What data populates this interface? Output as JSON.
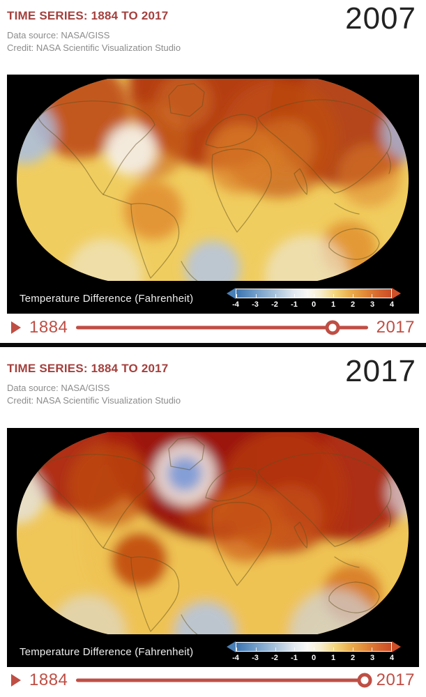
{
  "colors": {
    "accent_red": "#a4403d",
    "slider_red": "#bf4e44",
    "year": "#222222",
    "muted_text": "#8c8c8c",
    "panel_bg": "#000000",
    "page_bg": "#ffffff"
  },
  "legend": {
    "label": "Temperature Difference (Fahrenheit)",
    "ticks": [
      "-4",
      "-3",
      "-2",
      "-1",
      "0",
      "1",
      "2",
      "3",
      "4"
    ],
    "min_value": -4,
    "max_value": 4,
    "min_color": "#3c74b0",
    "max_color": "#cc4d26",
    "left_arrow_color": "#4a7fb5",
    "right_arrow_color": "#cf4f28"
  },
  "panels": [
    {
      "title": "TIME SERIES: 1884 TO 2017",
      "source": "Data source: NASA/GISS",
      "credit": "Credit: NASA Scientific Visualization Studio",
      "year": "2007",
      "slider": {
        "start_label": "1884",
        "end_label": "2017",
        "progress_pct": 88
      },
      "map": {
        "base_color": "#f0cd5f",
        "blobs": [
          [
            300,
            10,
            125,
            "#b23711",
            0.95
          ],
          [
            105,
            50,
            70,
            "#b83b10",
            0.8
          ],
          [
            488,
            50,
            110,
            "#aa2e0c",
            0.85
          ],
          [
            390,
            92,
            85,
            "#c25014",
            0.65
          ],
          [
            205,
            95,
            55,
            "#cc681e",
            0.6
          ],
          [
            255,
            38,
            40,
            "#d3742a",
            0.5
          ],
          [
            520,
            145,
            45,
            "#dd8228",
            0.5
          ],
          [
            25,
            83,
            45,
            "#a9bee2",
            0.85
          ],
          [
            578,
            83,
            40,
            "#a9bee2",
            0.8
          ],
          [
            178,
            108,
            36,
            "#f6f4ee",
            0.9
          ],
          [
            335,
            120,
            50,
            "#db7f26",
            0.7
          ],
          [
            400,
            105,
            42,
            "#d67822",
            0.6
          ],
          [
            210,
            195,
            42,
            "#e0882a",
            0.8
          ],
          [
            490,
            250,
            40,
            "#df882a",
            0.75
          ],
          [
            295,
            278,
            40,
            "#b4c5e4",
            0.85
          ],
          [
            430,
            290,
            60,
            "#eceadf",
            0.6
          ],
          [
            140,
            290,
            55,
            "#efece2",
            0.55
          ]
        ]
      }
    },
    {
      "title": "TIME SERIES: 1884 TO 2017",
      "source": "Data source: NASA/GISS",
      "credit": "Credit: NASA Scientific Visualization Studio",
      "year": "2017",
      "slider": {
        "start_label": "1884",
        "end_label": "2017",
        "progress_pct": 99
      },
      "map": {
        "base_color": "#efc658",
        "blobs": [
          [
            300,
            150,
            190,
            "#edb948",
            0.3
          ],
          [
            300,
            2,
            160,
            "#9c150a",
            1.0
          ],
          [
            110,
            45,
            78,
            "#a81e0c",
            0.9
          ],
          [
            480,
            48,
            115,
            "#a61d0b",
            0.9
          ],
          [
            395,
            92,
            90,
            "#b73a10",
            0.75
          ],
          [
            148,
            82,
            60,
            "#c24e10",
            0.65
          ],
          [
            283,
            110,
            35,
            "#bf4c14",
            0.7
          ],
          [
            255,
            66,
            45,
            "#f2f1ec",
            0.85
          ],
          [
            255,
            66,
            25,
            "#7e9cd6",
            0.95
          ],
          [
            15,
            97,
            40,
            "#e4e6ea",
            0.75
          ],
          [
            583,
            92,
            38,
            "#dde2ec",
            0.7
          ],
          [
            343,
            138,
            55,
            "#cf5f1a",
            0.7
          ],
          [
            408,
            126,
            45,
            "#c85416",
            0.6
          ],
          [
            190,
            190,
            40,
            "#c04810",
            0.9
          ],
          [
            495,
            238,
            42,
            "#d5701e",
            0.8
          ],
          [
            285,
            294,
            45,
            "#b4c5e4",
            0.85
          ],
          [
            470,
            296,
            65,
            "#ccd6e8",
            0.65
          ],
          [
            115,
            294,
            55,
            "#d9dfe9",
            0.55
          ]
        ]
      }
    }
  ]
}
